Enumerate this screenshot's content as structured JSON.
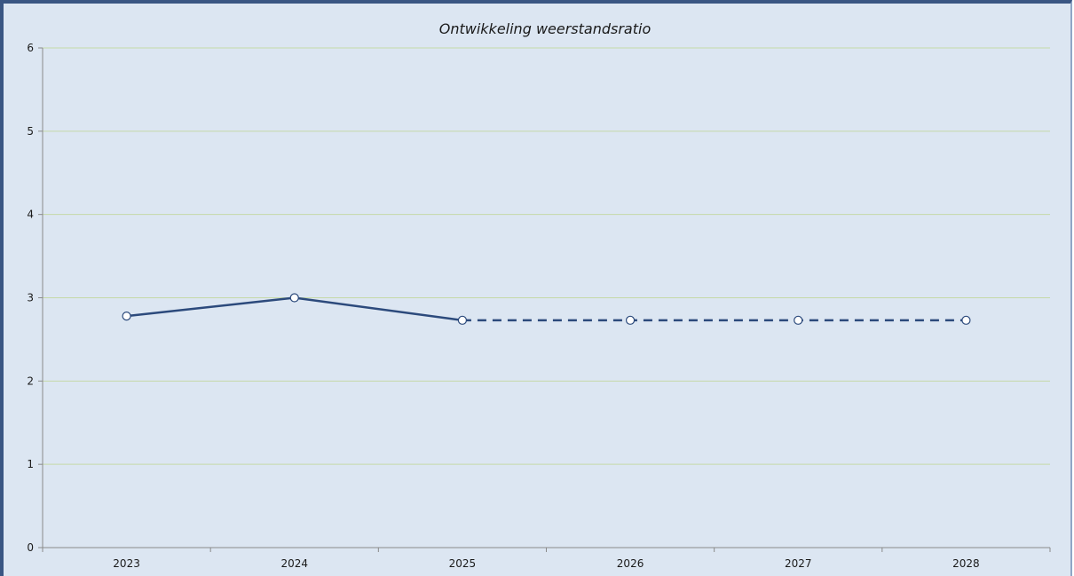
{
  "chart_data": {
    "type": "line",
    "title": "Ontwikkeling weerstandsratio",
    "xlabel": "",
    "ylabel": "",
    "categories": [
      "2023",
      "2024",
      "2025",
      "2026",
      "2027",
      "2028"
    ],
    "series": [
      {
        "values": [
          2.78,
          3.0,
          2.73,
          2.73,
          2.73,
          2.73
        ],
        "solid_through_index": 2,
        "color": "#2c4a7c"
      }
    ],
    "ylim": [
      0,
      6
    ],
    "yticks": [
      "0",
      "1",
      "2",
      "3",
      "4",
      "5",
      "6"
    ],
    "grid": true,
    "grid_color": "#c5d9a8",
    "legend": "none",
    "background": "#dce6f2"
  }
}
